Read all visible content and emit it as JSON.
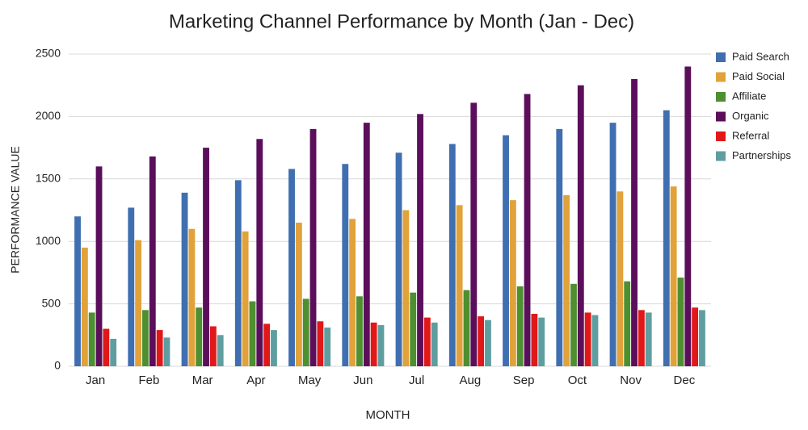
{
  "chart_data": {
    "type": "bar",
    "title": "Marketing Channel Performance by Month (Jan - Dec)",
    "x_label": "MONTH",
    "y_label": "PERFORMANCE VALUE",
    "categories": [
      "Jan",
      "Feb",
      "Mar",
      "Apr",
      "May",
      "Jun",
      "Jul",
      "Aug",
      "Sep",
      "Oct",
      "Nov",
      "Dec"
    ],
    "series": [
      {
        "name": "Paid Search",
        "color": "#3f6fb0",
        "values": [
          1200,
          1270,
          1390,
          1490,
          1580,
          1620,
          1710,
          1780,
          1850,
          1900,
          1950,
          2050
        ]
      },
      {
        "name": "Paid Social",
        "color": "#e1a23a",
        "values": [
          950,
          1010,
          1100,
          1080,
          1150,
          1180,
          1250,
          1290,
          1330,
          1370,
          1400,
          1440
        ]
      },
      {
        "name": "Affiliate",
        "color": "#4e8f30",
        "values": [
          430,
          450,
          470,
          520,
          540,
          560,
          590,
          610,
          640,
          660,
          680,
          710
        ]
      },
      {
        "name": "Organic",
        "color": "#5b0f5b",
        "values": [
          1600,
          1680,
          1750,
          1820,
          1900,
          1950,
          2020,
          2110,
          2180,
          2250,
          2300,
          2400
        ]
      },
      {
        "name": "Referral",
        "color": "#e01818",
        "values": [
          300,
          290,
          320,
          340,
          360,
          350,
          390,
          400,
          420,
          430,
          450,
          470
        ]
      },
      {
        "name": "Partnerships",
        "color": "#5f9ea0",
        "values": [
          220,
          230,
          250,
          290,
          310,
          330,
          350,
          370,
          390,
          410,
          430,
          450
        ]
      }
    ],
    "ylim": [
      0,
      2500
    ],
    "yticks": [
      0,
      500,
      1000,
      1500,
      2000,
      2500
    ],
    "grid": true,
    "legend": "right"
  }
}
